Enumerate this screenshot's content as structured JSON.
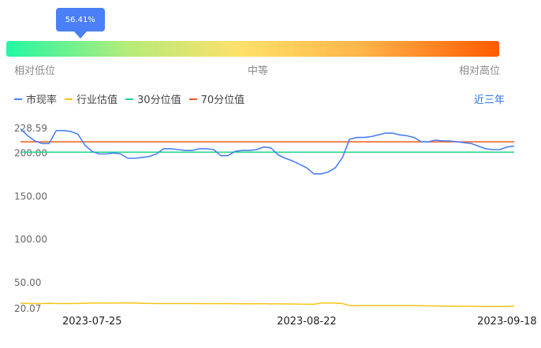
{
  "indicator": {
    "percentile_label": "56.41%",
    "percentile": 0.5641,
    "low_label": "相对低位",
    "mid_label": "中等",
    "high_label": "相对高位"
  },
  "legend": {
    "items": [
      {
        "label": "市现率",
        "color": "#4a7ff7"
      },
      {
        "label": "行业估值",
        "color": "#f5c518"
      },
      {
        "label": "30分位值",
        "color": "#1fd38a"
      },
      {
        "label": "70分位值",
        "color": "#f05a1a"
      }
    ]
  },
  "range_label": "近三年",
  "chart_data": {
    "type": "line",
    "ylim": [
      20.07,
      228.59
    ],
    "y_tick_labels": [
      "228.59",
      "200.00",
      "150.00",
      "100.00",
      "50.00",
      "20.07"
    ],
    "x_tick_labels": [
      "2023-07-25",
      "2023-08-22",
      "2023-09-18"
    ],
    "x_tick_index": [
      10,
      40,
      68
    ],
    "series": [
      {
        "name": "市现率",
        "color": "#4a7ff7",
        "values": [
          228,
          220,
          214,
          211,
          211,
          226,
          226,
          225,
          222,
          209,
          202,
          199,
          199,
          200,
          199,
          194,
          194,
          195,
          196,
          199,
          205,
          205,
          204,
          203,
          203,
          205,
          205,
          204,
          197,
          197,
          202,
          203,
          203,
          204,
          207,
          206,
          198,
          194,
          191,
          187,
          183,
          176,
          176,
          178,
          183,
          195,
          216,
          218,
          218,
          219,
          221,
          223,
          223,
          221,
          220,
          218,
          213,
          213,
          215,
          214,
          214,
          213,
          212,
          211,
          208,
          205,
          204,
          204,
          207,
          208
        ]
      },
      {
        "name": "行业估值",
        "color": "#f5c518",
        "values": [
          26.5,
          26.0,
          26.0,
          26.0,
          26.2,
          26.0,
          26.0,
          26.0,
          26.1,
          26.3,
          26.5,
          26.5,
          26.4,
          26.5,
          26.5,
          26.6,
          26.5,
          26.3,
          26.1,
          26.0,
          26.0,
          26.0,
          26.0,
          26.0,
          26.0,
          25.9,
          25.9,
          25.9,
          25.9,
          26.0,
          25.8,
          25.7,
          25.6,
          25.7,
          25.8,
          25.5,
          25.6,
          25.5,
          25.4,
          25.3,
          25.2,
          25.1,
          26.5,
          26.5,
          26.4,
          26.0,
          23.6,
          23.4,
          23.5,
          23.5,
          23.5,
          23.5,
          23.5,
          23.5,
          23.4,
          23.5,
          23.4,
          23.3,
          23.2,
          23.1,
          23.0,
          22.9,
          22.8,
          22.8,
          22.7,
          22.6,
          22.5,
          22.5,
          22.5,
          23.0
        ]
      },
      {
        "name": "30分位值",
        "color": "#1fd38a",
        "values": [
          201,
          201,
          201,
          201,
          201,
          201,
          201,
          201,
          201,
          201,
          201,
          201,
          201,
          201,
          201,
          201,
          201,
          201,
          201,
          201,
          201,
          201,
          201,
          201,
          201,
          201,
          201,
          201,
          201,
          201,
          201,
          201,
          201,
          201,
          201,
          201,
          201,
          201,
          201,
          201,
          201,
          201,
          201,
          201,
          201,
          201,
          201,
          201,
          201,
          201,
          201,
          201,
          201,
          201,
          201,
          201,
          201,
          201,
          201,
          201,
          201,
          201,
          201,
          201,
          201,
          201,
          201,
          201,
          201,
          201
        ]
      },
      {
        "name": "70分位值",
        "color": "#f05a1a",
        "values": [
          213,
          213,
          213,
          213,
          213,
          213,
          213,
          213,
          213,
          213,
          213,
          213,
          213,
          213,
          213,
          213,
          213,
          213,
          213,
          213,
          213,
          213,
          213,
          213,
          213,
          213,
          213,
          213,
          213,
          213,
          213,
          213,
          213,
          213,
          213,
          213,
          213,
          213,
          213,
          213,
          213,
          213,
          213,
          213,
          213,
          213,
          213,
          213,
          213,
          213,
          213,
          213,
          213,
          213,
          213,
          213,
          213,
          213,
          213,
          213,
          213,
          213,
          213,
          213,
          213,
          213,
          213,
          213,
          213,
          213
        ]
      }
    ]
  }
}
